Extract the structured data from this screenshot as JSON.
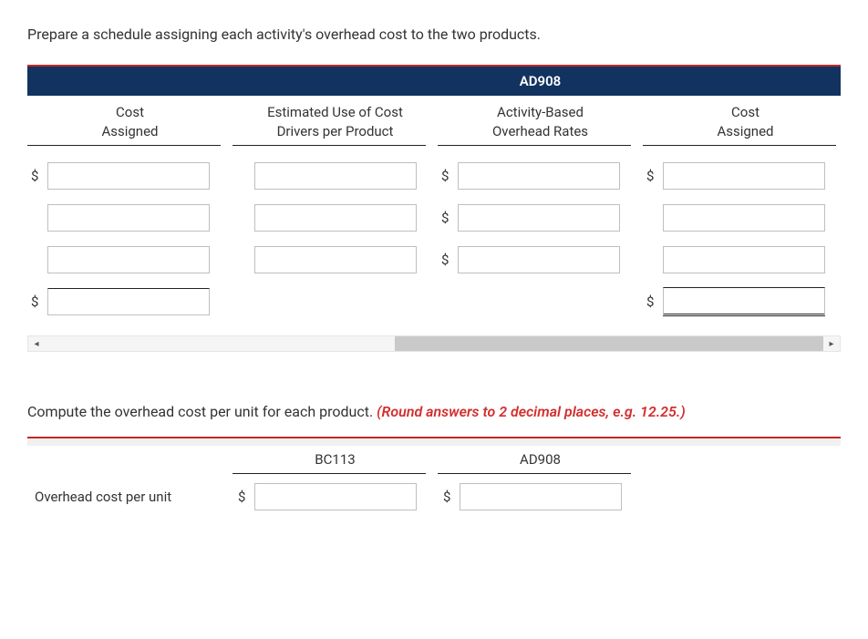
{
  "section1": {
    "instruction": "Prepare a schedule assigning each activity's overhead cost to the two products.",
    "product_label": "AD908",
    "headers": {
      "col1_line1": "Cost",
      "col1_line2": "Assigned",
      "col2_line1": "Estimated Use of Cost",
      "col2_line2": "Drivers per Product",
      "col3_line1": "Activity-Based",
      "col3_line2": "Overhead Rates",
      "col4_line1": "Cost",
      "col4_line2": "Assigned"
    },
    "currency": "$",
    "rows": [
      {
        "c1_dollar": true,
        "c3_dollar": true,
        "c4_dollar": true,
        "show_c2": true,
        "show_c3": true,
        "show_c4": true
      },
      {
        "c1_dollar": false,
        "c3_dollar": true,
        "c4_dollar": false,
        "show_c2": true,
        "show_c3": true,
        "show_c4": true
      },
      {
        "c1_dollar": false,
        "c3_dollar": true,
        "c4_dollar": false,
        "show_c2": true,
        "show_c3": true,
        "show_c4": true
      }
    ],
    "total_row": {
      "c1_dollar": true,
      "c4_dollar": true
    }
  },
  "section2": {
    "instruction_plain": "Compute the overhead cost per unit for each product. ",
    "instruction_red": "(Round answers to 2 decimal places, e.g. 12.25.)",
    "headers": {
      "h1": "BC113",
      "h2": "AD908"
    },
    "row_label": "Overhead cost per unit",
    "currency": "$"
  },
  "colors": {
    "navy": "#12335f",
    "red_accent": "#c62828",
    "red_text": "#d32f2f",
    "border_gray": "#bfbfbf",
    "scroll_thumb": "#c9c9c9"
  }
}
